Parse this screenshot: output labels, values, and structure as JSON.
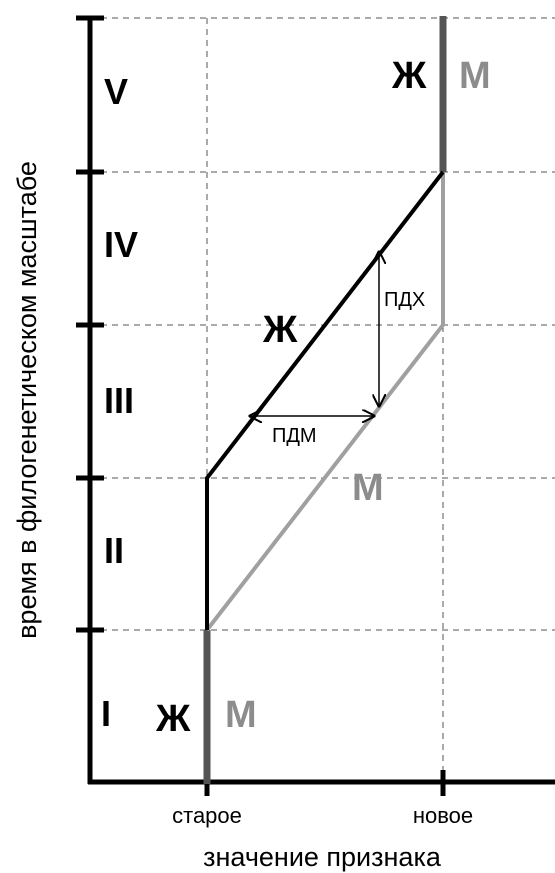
{
  "diagram": {
    "y_axis_label": "время в филогенетическом масштабе",
    "x_axis_label": "значение признака",
    "x_ticks": [
      "старое",
      "новое"
    ],
    "periods": [
      "I",
      "II",
      "III",
      "IV",
      "V"
    ],
    "female_symbol": "Ж",
    "male_symbol": "М",
    "label_pdm": "ПДМ",
    "label_pdh": "ПДХ",
    "colors": {
      "female": "#000000",
      "male": "#a0a0a0",
      "shared": "#555555",
      "axis": "#000000",
      "grid": "#555555"
    }
  }
}
